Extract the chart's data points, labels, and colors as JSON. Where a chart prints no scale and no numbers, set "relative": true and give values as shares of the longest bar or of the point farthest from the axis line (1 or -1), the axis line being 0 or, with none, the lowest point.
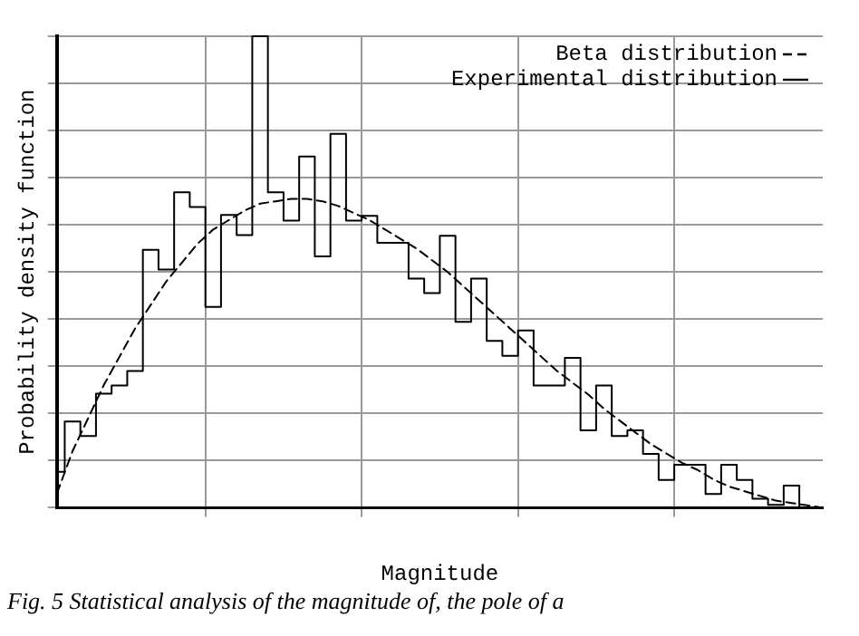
{
  "chart_data": {
    "type": "step",
    "relative": true,
    "xlabel": "Magnitude",
    "ylabel": "Probability density function",
    "categories": [
      null,
      null,
      null,
      null,
      null,
      null,
      null,
      null,
      null,
      null,
      null,
      null,
      null,
      null,
      null,
      null,
      null,
      null,
      null,
      null,
      null,
      null,
      null,
      null,
      null,
      null,
      null,
      null,
      null,
      null,
      null,
      null,
      null,
      null,
      null,
      null,
      null,
      null,
      null,
      null,
      null,
      null,
      null,
      null,
      null,
      null,
      null,
      null,
      null,
      null
    ],
    "series": [
      {
        "name": "Beta distribution",
        "type": "line",
        "line_style": "dashed",
        "color": "#000000",
        "values": [
          0.03,
          0.12,
          0.19,
          0.26,
          0.32,
          0.38,
          0.43,
          0.48,
          0.52,
          0.56,
          0.59,
          0.61,
          0.63,
          0.645,
          0.65,
          0.655,
          0.655,
          0.65,
          0.64,
          0.625,
          0.61,
          0.59,
          0.57,
          0.55,
          0.525,
          0.5,
          0.47,
          0.44,
          0.41,
          0.38,
          0.35,
          0.32,
          0.29,
          0.265,
          0.24,
          0.21,
          0.185,
          0.16,
          0.135,
          0.115,
          0.095,
          0.08,
          0.06,
          0.045,
          0.035,
          0.025,
          0.015,
          0.01,
          0.005,
          0
        ]
      },
      {
        "name": "Experimental distribution",
        "line_style": "solid",
        "color": "#000000",
        "values": [
          0.076,
          0.183,
          0.152,
          0.242,
          0.259,
          0.29,
          0.547,
          0.505,
          0.669,
          0.638,
          0.426,
          0.621,
          0.578,
          1,
          0.669,
          0.609,
          0.745,
          0.533,
          0.793,
          0.609,
          0.619,
          0.562,
          0.562,
          0.486,
          0.455,
          0.577,
          0.394,
          0.486,
          0.354,
          0.322,
          0.376,
          0.259,
          0.259,
          0.318,
          0.164,
          0.259,
          0.152,
          0.164,
          0.114,
          0.059,
          0.091,
          0.091,
          0.029,
          0.091,
          0.059,
          0.019,
          0.006,
          0.047,
          0,
          0
        ]
      }
    ],
    "grid": true,
    "legend": "top right",
    "marker": "none",
    "annotations": [
      "Fig. 5 Statistical analysis of the magnitude of, the pole of a"
    ]
  }
}
